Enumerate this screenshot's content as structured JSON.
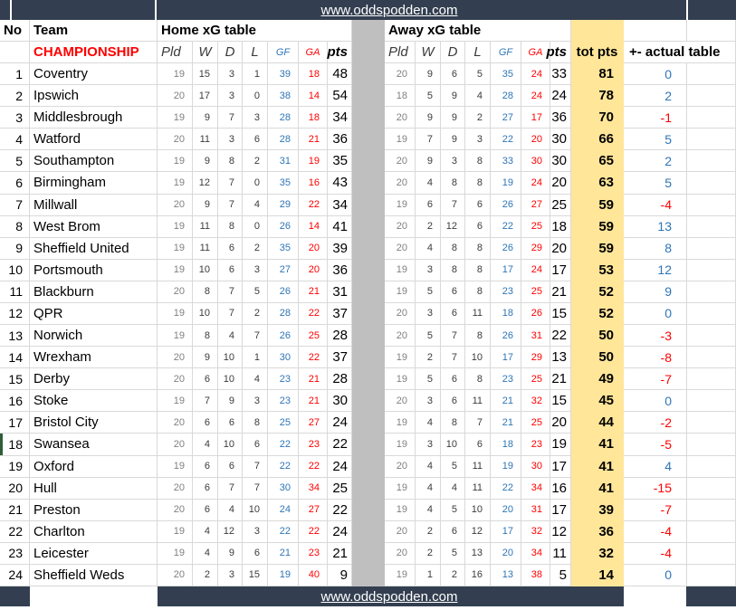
{
  "banner": {
    "url": "www.oddspodden.com"
  },
  "table": {
    "col_no": "No",
    "col_team": "Team",
    "home_title": "Home xG table",
    "away_title": "Away xG table",
    "league": "CHAMPIONSHIP",
    "stat_headers": {
      "pld": "Pld",
      "w": "W",
      "d": "D",
      "l": "L",
      "gf": "GF",
      "ga": "GA",
      "pts": "pts"
    },
    "col_tot": "tot pts",
    "col_diff": "+- actual table"
  },
  "colors": {
    "banner_bg": "#333F50",
    "highlight": "#FFE699",
    "separator": "#BFBFBF",
    "grid_line": "#D9D9D9",
    "blue": "#2E75B6",
    "red": "#FF0000",
    "gray_text": "#808080",
    "selection_green": "#2F5D3A"
  },
  "rows": [
    {
      "no": 1,
      "team": "Coventry",
      "home": {
        "pld": 19,
        "w": 15,
        "d": 3,
        "l": 1,
        "gf": 39,
        "ga": 18,
        "pts": 48
      },
      "away": {
        "pld": 20,
        "w": 9,
        "d": 6,
        "l": 5,
        "gf": 35,
        "ga": 24,
        "pts": 33
      },
      "tot": 81,
      "diff": 0
    },
    {
      "no": 2,
      "team": "Ipswich",
      "home": {
        "pld": 20,
        "w": 17,
        "d": 3,
        "l": 0,
        "gf": 38,
        "ga": 14,
        "pts": 54
      },
      "away": {
        "pld": 18,
        "w": 5,
        "d": 9,
        "l": 4,
        "gf": 28,
        "ga": 24,
        "pts": 24
      },
      "tot": 78,
      "diff": 2
    },
    {
      "no": 3,
      "team": "Middlesbrough",
      "home": {
        "pld": 19,
        "w": 9,
        "d": 7,
        "l": 3,
        "gf": 28,
        "ga": 18,
        "pts": 34
      },
      "away": {
        "pld": 20,
        "w": 9,
        "d": 9,
        "l": 2,
        "gf": 27,
        "ga": 17,
        "pts": 36
      },
      "tot": 70,
      "diff": -1
    },
    {
      "no": 4,
      "team": "Watford",
      "home": {
        "pld": 20,
        "w": 11,
        "d": 3,
        "l": 6,
        "gf": 28,
        "ga": 21,
        "pts": 36
      },
      "away": {
        "pld": 19,
        "w": 7,
        "d": 9,
        "l": 3,
        "gf": 22,
        "ga": 20,
        "pts": 30
      },
      "tot": 66,
      "diff": 5
    },
    {
      "no": 5,
      "team": "Southampton",
      "home": {
        "pld": 19,
        "w": 9,
        "d": 8,
        "l": 2,
        "gf": 31,
        "ga": 19,
        "pts": 35
      },
      "away": {
        "pld": 20,
        "w": 9,
        "d": 3,
        "l": 8,
        "gf": 33,
        "ga": 30,
        "pts": 30
      },
      "tot": 65,
      "diff": 2
    },
    {
      "no": 6,
      "team": "Birmingham",
      "home": {
        "pld": 19,
        "w": 12,
        "d": 7,
        "l": 0,
        "gf": 35,
        "ga": 16,
        "pts": 43
      },
      "away": {
        "pld": 20,
        "w": 4,
        "d": 8,
        "l": 8,
        "gf": 19,
        "ga": 24,
        "pts": 20
      },
      "tot": 63,
      "diff": 5
    },
    {
      "no": 7,
      "team": "Millwall",
      "home": {
        "pld": 20,
        "w": 9,
        "d": 7,
        "l": 4,
        "gf": 29,
        "ga": 22,
        "pts": 34
      },
      "away": {
        "pld": 19,
        "w": 6,
        "d": 7,
        "l": 6,
        "gf": 26,
        "ga": 27,
        "pts": 25
      },
      "tot": 59,
      "diff": -4
    },
    {
      "no": 8,
      "team": "West Brom",
      "home": {
        "pld": 19,
        "w": 11,
        "d": 8,
        "l": 0,
        "gf": 26,
        "ga": 14,
        "pts": 41
      },
      "away": {
        "pld": 20,
        "w": 2,
        "d": 12,
        "l": 6,
        "gf": 22,
        "ga": 25,
        "pts": 18
      },
      "tot": 59,
      "diff": 13
    },
    {
      "no": 9,
      "team": "Sheffield United",
      "home": {
        "pld": 19,
        "w": 11,
        "d": 6,
        "l": 2,
        "gf": 35,
        "ga": 20,
        "pts": 39
      },
      "away": {
        "pld": 20,
        "w": 4,
        "d": 8,
        "l": 8,
        "gf": 26,
        "ga": 29,
        "pts": 20
      },
      "tot": 59,
      "diff": 8
    },
    {
      "no": 10,
      "team": "Portsmouth",
      "home": {
        "pld": 19,
        "w": 10,
        "d": 6,
        "l": 3,
        "gf": 27,
        "ga": 20,
        "pts": 36
      },
      "away": {
        "pld": 19,
        "w": 3,
        "d": 8,
        "l": 8,
        "gf": 17,
        "ga": 24,
        "pts": 17
      },
      "tot": 53,
      "diff": 12
    },
    {
      "no": 11,
      "team": "Blackburn",
      "home": {
        "pld": 20,
        "w": 8,
        "d": 7,
        "l": 5,
        "gf": 26,
        "ga": 21,
        "pts": 31
      },
      "away": {
        "pld": 19,
        "w": 5,
        "d": 6,
        "l": 8,
        "gf": 23,
        "ga": 25,
        "pts": 21
      },
      "tot": 52,
      "diff": 9
    },
    {
      "no": 12,
      "team": "QPR",
      "home": {
        "pld": 19,
        "w": 10,
        "d": 7,
        "l": 2,
        "gf": 28,
        "ga": 22,
        "pts": 37
      },
      "away": {
        "pld": 20,
        "w": 3,
        "d": 6,
        "l": 11,
        "gf": 18,
        "ga": 26,
        "pts": 15
      },
      "tot": 52,
      "diff": 0
    },
    {
      "no": 13,
      "team": "Norwich",
      "home": {
        "pld": 19,
        "w": 8,
        "d": 4,
        "l": 7,
        "gf": 26,
        "ga": 25,
        "pts": 28
      },
      "away": {
        "pld": 20,
        "w": 5,
        "d": 7,
        "l": 8,
        "gf": 26,
        "ga": 31,
        "pts": 22
      },
      "tot": 50,
      "diff": -3
    },
    {
      "no": 14,
      "team": "Wrexham",
      "home": {
        "pld": 20,
        "w": 9,
        "d": 10,
        "l": 1,
        "gf": 30,
        "ga": 22,
        "pts": 37
      },
      "away": {
        "pld": 19,
        "w": 2,
        "d": 7,
        "l": 10,
        "gf": 17,
        "ga": 29,
        "pts": 13
      },
      "tot": 50,
      "diff": -8
    },
    {
      "no": 15,
      "team": "Derby",
      "home": {
        "pld": 20,
        "w": 6,
        "d": 10,
        "l": 4,
        "gf": 23,
        "ga": 21,
        "pts": 28
      },
      "away": {
        "pld": 19,
        "w": 5,
        "d": 6,
        "l": 8,
        "gf": 23,
        "ga": 25,
        "pts": 21
      },
      "tot": 49,
      "diff": -7
    },
    {
      "no": 16,
      "team": "Stoke",
      "home": {
        "pld": 19,
        "w": 7,
        "d": 9,
        "l": 3,
        "gf": 23,
        "ga": 21,
        "pts": 30
      },
      "away": {
        "pld": 20,
        "w": 3,
        "d": 6,
        "l": 11,
        "gf": 21,
        "ga": 32,
        "pts": 15
      },
      "tot": 45,
      "diff": 0
    },
    {
      "no": 17,
      "team": "Bristol City",
      "home": {
        "pld": 20,
        "w": 6,
        "d": 6,
        "l": 8,
        "gf": 25,
        "ga": 27,
        "pts": 24
      },
      "away": {
        "pld": 19,
        "w": 4,
        "d": 8,
        "l": 7,
        "gf": 21,
        "ga": 25,
        "pts": 20
      },
      "tot": 44,
      "diff": -2
    },
    {
      "no": 18,
      "team": "Swansea",
      "home": {
        "pld": 20,
        "w": 4,
        "d": 10,
        "l": 6,
        "gf": 22,
        "ga": 23,
        "pts": 22
      },
      "away": {
        "pld": 19,
        "w": 3,
        "d": 10,
        "l": 6,
        "gf": 18,
        "ga": 23,
        "pts": 19
      },
      "tot": 41,
      "diff": -5
    },
    {
      "no": 19,
      "team": "Oxford",
      "home": {
        "pld": 19,
        "w": 6,
        "d": 6,
        "l": 7,
        "gf": 22,
        "ga": 22,
        "pts": 24
      },
      "away": {
        "pld": 20,
        "w": 4,
        "d": 5,
        "l": 11,
        "gf": 19,
        "ga": 30,
        "pts": 17
      },
      "tot": 41,
      "diff": 4
    },
    {
      "no": 20,
      "team": "Hull",
      "home": {
        "pld": 20,
        "w": 6,
        "d": 7,
        "l": 7,
        "gf": 30,
        "ga": 34,
        "pts": 25
      },
      "away": {
        "pld": 19,
        "w": 4,
        "d": 4,
        "l": 11,
        "gf": 22,
        "ga": 34,
        "pts": 16
      },
      "tot": 41,
      "diff": -15
    },
    {
      "no": 21,
      "team": "Preston",
      "home": {
        "pld": 20,
        "w": 6,
        "d": 4,
        "l": 10,
        "gf": 24,
        "ga": 27,
        "pts": 22
      },
      "away": {
        "pld": 19,
        "w": 4,
        "d": 5,
        "l": 10,
        "gf": 20,
        "ga": 31,
        "pts": 17
      },
      "tot": 39,
      "diff": -7
    },
    {
      "no": 22,
      "team": "Charlton",
      "home": {
        "pld": 19,
        "w": 4,
        "d": 12,
        "l": 3,
        "gf": 22,
        "ga": 22,
        "pts": 24
      },
      "away": {
        "pld": 20,
        "w": 2,
        "d": 6,
        "l": 12,
        "gf": 17,
        "ga": 32,
        "pts": 12
      },
      "tot": 36,
      "diff": -4
    },
    {
      "no": 23,
      "team": "Leicester",
      "home": {
        "pld": 19,
        "w": 4,
        "d": 9,
        "l": 6,
        "gf": 21,
        "ga": 23,
        "pts": 21
      },
      "away": {
        "pld": 20,
        "w": 2,
        "d": 5,
        "l": 13,
        "gf": 20,
        "ga": 34,
        "pts": 11
      },
      "tot": 32,
      "diff": -4
    },
    {
      "no": 24,
      "team": "Sheffield Weds",
      "home": {
        "pld": 20,
        "w": 2,
        "d": 3,
        "l": 15,
        "gf": 19,
        "ga": 40,
        "pts": 9
      },
      "away": {
        "pld": 19,
        "w": 1,
        "d": 2,
        "l": 16,
        "gf": 13,
        "ga": 38,
        "pts": 5
      },
      "tot": 14,
      "diff": 0
    }
  ]
}
